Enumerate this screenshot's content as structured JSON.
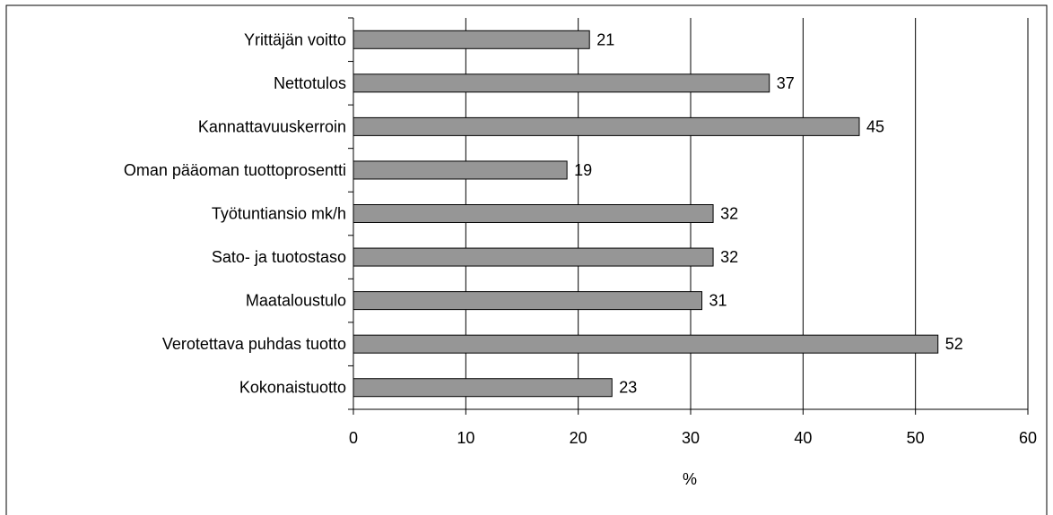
{
  "chart_data": {
    "type": "bar",
    "orientation": "horizontal",
    "categories": [
      "Yrittäjän voitto",
      "Nettotulos",
      "Kannattavuuskerroin",
      "Oman pääoman tuottoprosentti",
      "Työtuntiansio mk/h",
      "Sato- ja tuotostaso",
      "Maataloustulo",
      "Verotettava puhdas tuotto",
      "Kokonaistuotto"
    ],
    "values": [
      21,
      37,
      45,
      19,
      32,
      32,
      31,
      52,
      23
    ],
    "value_labels": [
      "21",
      "37",
      "45",
      "19",
      "32",
      "32",
      "31",
      "52",
      "23"
    ],
    "xticks": [
      0,
      10,
      20,
      30,
      40,
      50,
      60
    ],
    "xtick_labels": [
      "0",
      "10",
      "20",
      "30",
      "40",
      "50",
      "60"
    ],
    "xlim": [
      0,
      60
    ],
    "xlabel": "%",
    "grid": "vertical",
    "bar_color": "#969696",
    "bar_edge_color": "#000000",
    "legend": "none"
  }
}
